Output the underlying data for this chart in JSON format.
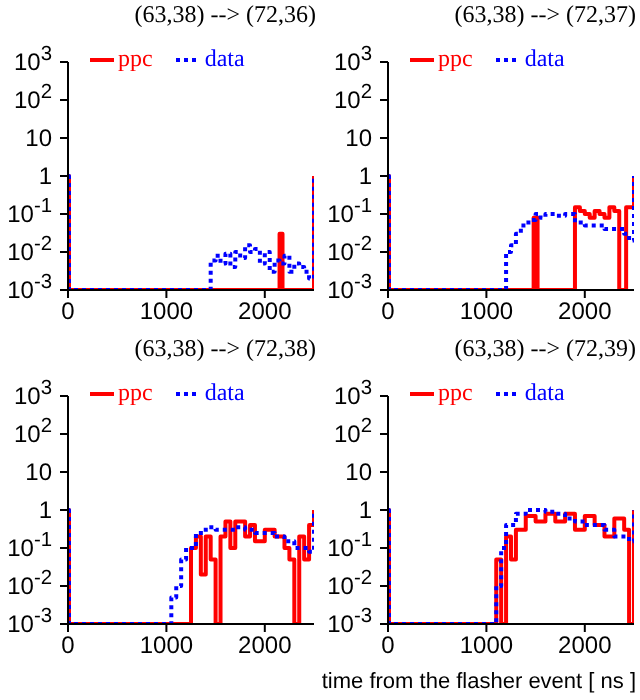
{
  "chart_data": [
    {
      "type": "step",
      "title": "(63,38) --> (72,36)",
      "xlim": [
        0,
        2500
      ],
      "xticks": [
        0,
        1000,
        2000
      ],
      "ylim": [
        0.001,
        1000
      ],
      "log": "y",
      "yticks": [
        {
          "value": 1000,
          "label": "10$^{3}$"
        },
        {
          "value": 100,
          "label": "10$^{2}$"
        },
        {
          "value": 10,
          "label": "10"
        },
        {
          "value": 1,
          "label": "1"
        },
        {
          "value": 0.1,
          "label": "10$^{-1}$"
        },
        {
          "value": 0.01,
          "label": "10$^{-2}$"
        },
        {
          "value": 0.001,
          "label": "10$^{-3}$"
        }
      ],
      "legend": "top",
      "marker": "none",
      "series": [
        {
          "name": "ppc",
          "color": "#ff0000",
          "line_style": "solid",
          "x": [
            0,
            10,
            2150,
            2180,
            2500
          ],
          "values": [
            1,
            0.001,
            0.03,
            0.001,
            1
          ]
        },
        {
          "name": "data",
          "color": "#0000ff",
          "line_style": "dotted",
          "x": [
            0,
            10,
            1450,
            1500,
            1550,
            1600,
            1650,
            1700,
            1750,
            1800,
            1850,
            1900,
            1950,
            2000,
            2050,
            2100,
            2150,
            2200,
            2250,
            2300,
            2350,
            2400,
            2450,
            2500
          ],
          "values": [
            1,
            0.001,
            0.006,
            0.008,
            0.005,
            0.009,
            0.004,
            0.01,
            0.007,
            0.015,
            0.01,
            0.012,
            0.005,
            0.01,
            0.003,
            0.006,
            0.005,
            0.008,
            0.003,
            0.005,
            0.004,
            0.003,
            0.002,
            1
          ]
        }
      ]
    },
    {
      "type": "step",
      "title": "(63,38) --> (72,37)",
      "xlim": [
        0,
        2500
      ],
      "xticks": [
        0,
        1000,
        2000
      ],
      "ylim": [
        0.001,
        1000
      ],
      "log": "y",
      "yticks": [
        {
          "value": 1000,
          "label": "10$^{3}$"
        },
        {
          "value": 100,
          "label": "10$^{2}$"
        },
        {
          "value": 10,
          "label": "10"
        },
        {
          "value": 1,
          "label": "1"
        },
        {
          "value": 0.1,
          "label": "10$^{-1}$"
        },
        {
          "value": 0.01,
          "label": "10$^{-2}$"
        },
        {
          "value": 0.001,
          "label": "10$^{-3}$"
        }
      ],
      "legend": "top",
      "marker": "none",
      "series": [
        {
          "name": "ppc",
          "color": "#ff0000",
          "line_style": "solid",
          "x": [
            0,
            10,
            1480,
            1500,
            1520,
            1900,
            1950,
            2000,
            2050,
            2100,
            2150,
            2200,
            2250,
            2300,
            2350,
            2420,
            2480,
            2500
          ],
          "values": [
            1,
            0.001,
            0.08,
            0.08,
            0.001,
            0.15,
            0.12,
            0.1,
            0.08,
            0.12,
            0.1,
            0.08,
            0.15,
            0.12,
            0.001,
            0.15,
            0.15,
            1
          ]
        },
        {
          "name": "data",
          "color": "#0000ff",
          "line_style": "dotted",
          "x": [
            0,
            10,
            1150,
            1200,
            1250,
            1300,
            1350,
            1400,
            1450,
            1500,
            1550,
            1600,
            1700,
            1800,
            1900,
            2000,
            2100,
            2200,
            2300,
            2400,
            2450,
            2500
          ],
          "values": [
            1,
            0.001,
            0.001,
            0.01,
            0.015,
            0.03,
            0.05,
            0.06,
            0.07,
            0.1,
            0.08,
            0.1,
            0.09,
            0.1,
            0.06,
            0.05,
            0.05,
            0.04,
            0.04,
            0.03,
            0.02,
            1
          ]
        }
      ]
    },
    {
      "type": "step",
      "title": "(63,38) --> (72,38)",
      "xlim": [
        0,
        2500
      ],
      "xticks": [
        0,
        1000,
        2000
      ],
      "ylim": [
        0.001,
        1000
      ],
      "log": "y",
      "yticks": [
        {
          "value": 1000,
          "label": "10$^{3}$"
        },
        {
          "value": 100,
          "label": "10$^{2}$"
        },
        {
          "value": 10,
          "label": "10"
        },
        {
          "value": 1,
          "label": "1"
        },
        {
          "value": 0.1,
          "label": "10$^{-1}$"
        },
        {
          "value": 0.01,
          "label": "10$^{-2}$"
        },
        {
          "value": 0.001,
          "label": "10$^{-3}$"
        }
      ],
      "legend": "top",
      "marker": "none",
      "series": [
        {
          "name": "ppc",
          "color": "#ff0000",
          "line_style": "solid",
          "x": [
            0,
            10,
            1250,
            1300,
            1350,
            1400,
            1450,
            1500,
            1550,
            1600,
            1650,
            1700,
            1800,
            1850,
            1900,
            2000,
            2100,
            2200,
            2250,
            2300,
            2350,
            2400,
            2450,
            2500
          ],
          "values": [
            1,
            0.001,
            0.1,
            0.2,
            0.02,
            0.2,
            0.05,
            0.001,
            0.2,
            0.5,
            0.1,
            0.5,
            0.2,
            0.4,
            0.15,
            0.3,
            0.2,
            0.1,
            0.05,
            0.001,
            0.2,
            0.05,
            0.4,
            1
          ]
        },
        {
          "name": "data",
          "color": "#0000ff",
          "line_style": "dotted",
          "x": [
            0,
            10,
            1000,
            1050,
            1100,
            1150,
            1200,
            1300,
            1400,
            1500,
            1600,
            1700,
            1800,
            1900,
            2000,
            2100,
            2200,
            2300,
            2400,
            2450,
            2500
          ],
          "values": [
            1,
            0.001,
            0.001,
            0.005,
            0.01,
            0.05,
            0.1,
            0.25,
            0.35,
            0.3,
            0.3,
            0.35,
            0.3,
            0.25,
            0.25,
            0.2,
            0.15,
            0.1,
            0.1,
            0.08,
            1
          ]
        }
      ]
    },
    {
      "type": "step",
      "title": "(63,38) --> (72,39)",
      "xlabel": "time from the flasher event [ ns ]",
      "xlim": [
        0,
        2500
      ],
      "xticks": [
        0,
        1000,
        2000
      ],
      "ylim": [
        0.001,
        1000
      ],
      "log": "y",
      "yticks": [
        {
          "value": 1000,
          "label": "10$^{3}$"
        },
        {
          "value": 100,
          "label": "10$^{2}$"
        },
        {
          "value": 10,
          "label": "10"
        },
        {
          "value": 1,
          "label": "1"
        },
        {
          "value": 0.1,
          "label": "10$^{-1}$"
        },
        {
          "value": 0.01,
          "label": "10$^{-2}$"
        },
        {
          "value": 0.001,
          "label": "10$^{-3}$"
        }
      ],
      "legend": "top",
      "marker": "none",
      "series": [
        {
          "name": "ppc",
          "color": "#ff0000",
          "line_style": "solid",
          "x": [
            0,
            10,
            1100,
            1150,
            1200,
            1250,
            1300,
            1400,
            1500,
            1600,
            1700,
            1800,
            1900,
            2000,
            2100,
            2200,
            2300,
            2400,
            2450,
            2500
          ],
          "values": [
            1,
            0.001,
            0.05,
            0.001,
            0.2,
            0.05,
            0.3,
            0.7,
            0.5,
            0.8,
            0.5,
            0.8,
            0.3,
            0.7,
            0.4,
            0.2,
            0.6,
            0.3,
            0.001,
            1
          ]
        },
        {
          "name": "data",
          "color": "#0000ff",
          "line_style": "dotted",
          "x": [
            0,
            10,
            1050,
            1100,
            1150,
            1200,
            1300,
            1400,
            1500,
            1600,
            1700,
            1800,
            1900,
            2000,
            2100,
            2200,
            2300,
            2400,
            2450,
            2500
          ],
          "values": [
            1,
            0.001,
            0.001,
            0.01,
            0.1,
            0.4,
            0.8,
            1,
            1,
            0.9,
            0.8,
            0.6,
            0.5,
            0.4,
            0.4,
            0.3,
            0.2,
            0.2,
            0.15,
            1
          ]
        }
      ]
    }
  ]
}
